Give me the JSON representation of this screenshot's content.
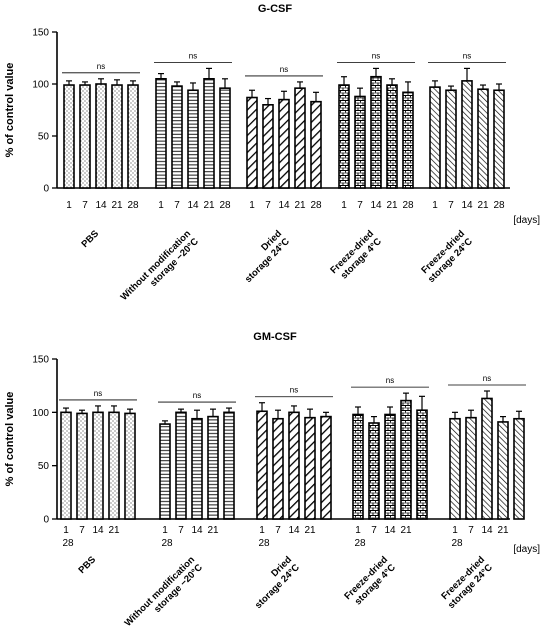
{
  "chart_data": [
    {
      "type": "bar",
      "title": "G-CSF",
      "ylabel": "% of control value",
      "ylim": [
        0,
        150
      ],
      "yticks": [
        "0",
        "50",
        "100",
        "150"
      ],
      "x_tick_labels": [
        "1",
        "7",
        "14",
        "21",
        "28"
      ],
      "x_unit": "[days]",
      "significance": "ns",
      "grid": false,
      "groups": [
        {
          "name": "PBS",
          "label_lines": [
            "PBS"
          ],
          "pattern": "dots",
          "values": [
            99,
            99,
            100,
            99,
            99
          ],
          "errors": [
            4,
            3,
            5,
            5,
            4
          ]
        },
        {
          "name": "Without modification storage −20°C",
          "label_lines": [
            "Without modification",
            "storage −20°C"
          ],
          "pattern": "hlines",
          "values": [
            105,
            98,
            94,
            105,
            96
          ],
          "errors": [
            5,
            4,
            7,
            10,
            9
          ]
        },
        {
          "name": "Dried storage 24°C",
          "label_lines": [
            "Dried",
            "storage 24°C"
          ],
          "pattern": "diag",
          "values": [
            87,
            80,
            85,
            96,
            83
          ],
          "errors": [
            7,
            6,
            8,
            6,
            9
          ]
        },
        {
          "name": "Freeze-dried storage 4°C",
          "label_lines": [
            "Freeze-dried",
            "storage 4°C"
          ],
          "pattern": "brick",
          "values": [
            99,
            88,
            107,
            99,
            92
          ],
          "errors": [
            8,
            8,
            8,
            6,
            10
          ]
        },
        {
          "name": "Freeze-dried storage 24°C",
          "label_lines": [
            "Freeze-dried",
            "storage 24°C"
          ],
          "pattern": "diagdense",
          "values": [
            97,
            94,
            103,
            95,
            94
          ],
          "errors": [
            6,
            4,
            12,
            4,
            6
          ]
        }
      ]
    },
    {
      "type": "bar",
      "title": "GM-CSF",
      "ylabel": "% of control value",
      "ylim": [
        0,
        150
      ],
      "yticks": [
        "0",
        "50",
        "100",
        "150"
      ],
      "x_tick_labels": [
        "1",
        "7",
        "14",
        "21",
        "28"
      ],
      "x_unit": "[days]",
      "significance": "ns",
      "grid": false,
      "groups": [
        {
          "name": "PBS",
          "label_lines": [
            "PBS"
          ],
          "pattern": "dots",
          "values": [
            100,
            99,
            100,
            100,
            99
          ],
          "errors": [
            4,
            3,
            6,
            6,
            4
          ]
        },
        {
          "name": "Without modification storage −20°C",
          "label_lines": [
            "Without modification",
            "storage −20°C"
          ],
          "pattern": "hlines",
          "values": [
            89,
            100,
            94,
            96,
            100
          ],
          "errors": [
            3,
            3,
            8,
            7,
            4
          ]
        },
        {
          "name": "Dried storage 24°C",
          "label_lines": [
            "Dried",
            "storage 24°C"
          ],
          "pattern": "diag",
          "values": [
            101,
            94,
            100,
            95,
            96
          ],
          "errors": [
            8,
            8,
            6,
            8,
            4
          ]
        },
        {
          "name": "Freeze-dried storage 4°C",
          "label_lines": [
            "Freeze-dried",
            "storage 4°C"
          ],
          "pattern": "brick",
          "values": [
            98,
            90,
            98,
            111,
            102
          ],
          "errors": [
            7,
            6,
            7,
            7,
            13
          ]
        },
        {
          "name": "Freeze-dried storage 24°C",
          "label_lines": [
            "Freeze-dried",
            "storage 24°C"
          ],
          "pattern": "diagdense",
          "values": [
            94,
            95,
            113,
            91,
            94
          ],
          "errors": [
            6,
            7,
            7,
            5,
            7
          ]
        }
      ]
    }
  ]
}
